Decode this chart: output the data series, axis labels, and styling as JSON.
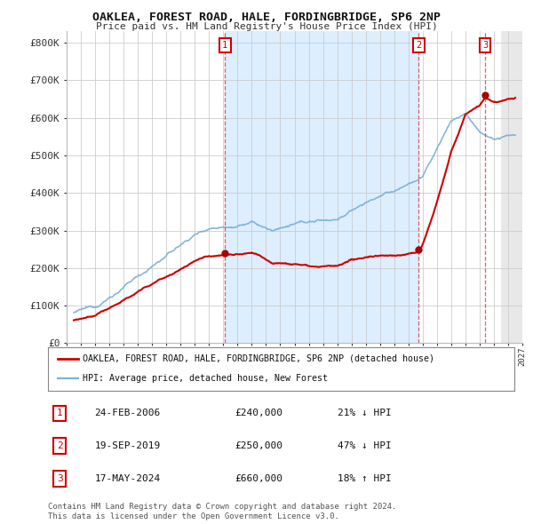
{
  "title": "OAKLEA, FOREST ROAD, HALE, FORDINGBRIDGE, SP6 2NP",
  "subtitle": "Price paid vs. HM Land Registry's House Price Index (HPI)",
  "ylabel_ticks": [
    "£0",
    "£100K",
    "£200K",
    "£300K",
    "£400K",
    "£500K",
    "£600K",
    "£700K",
    "£800K"
  ],
  "ytick_vals": [
    0,
    100000,
    200000,
    300000,
    400000,
    500000,
    600000,
    700000,
    800000
  ],
  "ylim": [
    0,
    830000
  ],
  "xlim_start": 1995.5,
  "xlim_end": 2027.0,
  "sale1_year": 2006.12,
  "sale1_price": 240000,
  "sale2_year": 2019.72,
  "sale2_price": 250000,
  "sale3_year": 2024.38,
  "sale3_price": 660000,
  "legend_label_red": "OAKLEA, FOREST ROAD, HALE, FORDINGBRIDGE, SP6 2NP (detached house)",
  "legend_label_blue": "HPI: Average price, detached house, New Forest",
  "legend_color_red": "#cc0000",
  "legend_color_blue": "#7ab0d4",
  "table_rows": [
    {
      "num": "1",
      "date": "24-FEB-2006",
      "price": "£240,000",
      "pct": "21% ↓ HPI"
    },
    {
      "num": "2",
      "date": "19-SEP-2019",
      "price": "£250,000",
      "pct": "47% ↓ HPI"
    },
    {
      "num": "3",
      "date": "17-MAY-2024",
      "price": "£660,000",
      "pct": "18% ↑ HPI"
    }
  ],
  "footnote1": "Contains HM Land Registry data © Crown copyright and database right 2024.",
  "footnote2": "This data is licensed under the Open Government Licence v3.0.",
  "bg_color": "#ffffff",
  "grid_color": "#cccccc",
  "shade_color": "#ddeeff",
  "hatch_color": "#cccccc",
  "marker_color": "#aa0000",
  "box_color": "#cc0000"
}
